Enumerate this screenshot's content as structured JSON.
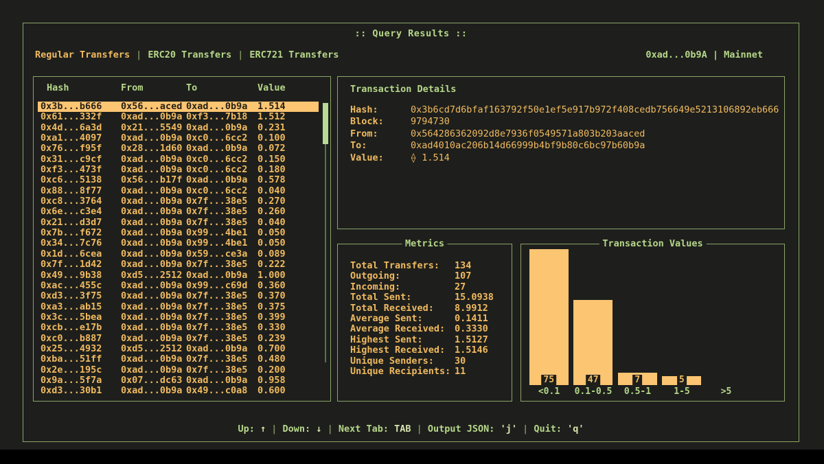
{
  "header": {
    "title": ":: Query Results ::",
    "account_label": "0xad...0b9A | Mainnet"
  },
  "tab_separator": "|",
  "tabs": [
    {
      "label": "Regular Transfers",
      "active": true
    },
    {
      "label": "ERC20 Transfers",
      "active": false
    },
    {
      "label": "ERC721 Transfers",
      "active": false
    }
  ],
  "table": {
    "columns": [
      "Hash",
      "From",
      "To",
      "Value"
    ],
    "selected_index": 0,
    "rows": [
      [
        "0x3b...b666",
        "0x56...aced",
        "0xad...0b9a",
        "1.514"
      ],
      [
        "0x61...332f",
        "0xad...0b9a",
        "0xf3...7b18",
        "1.512"
      ],
      [
        "0x4d...6a3d",
        "0x21...5549",
        "0xad...0b9a",
        "0.231"
      ],
      [
        "0xa1...4097",
        "0xad...0b9a",
        "0xc0...6cc2",
        "0.100"
      ],
      [
        "0x76...f95f",
        "0x28...1d60",
        "0xad...0b9a",
        "0.072"
      ],
      [
        "0x31...c9cf",
        "0xad...0b9a",
        "0xc0...6cc2",
        "0.150"
      ],
      [
        "0xf3...473f",
        "0xad...0b9a",
        "0xc0...6cc2",
        "0.180"
      ],
      [
        "0xc6...5138",
        "0x56...b17f",
        "0xad...0b9a",
        "0.578"
      ],
      [
        "0x88...8f77",
        "0xad...0b9a",
        "0xc0...6cc2",
        "0.040"
      ],
      [
        "0xc8...3764",
        "0xad...0b9a",
        "0x7f...38e5",
        "0.270"
      ],
      [
        "0x6e...c3e4",
        "0xad...0b9a",
        "0x7f...38e5",
        "0.260"
      ],
      [
        "0x21...d3d7",
        "0xad...0b9a",
        "0x7f...38e5",
        "0.040"
      ],
      [
        "0x7b...f672",
        "0xad...0b9a",
        "0x99...4be1",
        "0.050"
      ],
      [
        "0x34...7c76",
        "0xad...0b9a",
        "0x99...4be1",
        "0.050"
      ],
      [
        "0x1d...6cea",
        "0xad...0b9a",
        "0x59...ce3a",
        "0.089"
      ],
      [
        "0x7f...1d42",
        "0xad...0b9a",
        "0x7f...38e5",
        "0.222"
      ],
      [
        "0x49...9b38",
        "0xd5...2512",
        "0xad...0b9a",
        "1.000"
      ],
      [
        "0xac...455c",
        "0xad...0b9a",
        "0x99...c69d",
        "0.360"
      ],
      [
        "0xd3...3f75",
        "0xad...0b9a",
        "0x7f...38e5",
        "0.370"
      ],
      [
        "0xa3...ab15",
        "0xad...0b9a",
        "0x7f...38e5",
        "0.375"
      ],
      [
        "0x3c...5bea",
        "0xad...0b9a",
        "0x7f...38e5",
        "0.399"
      ],
      [
        "0xcb...e17b",
        "0xad...0b9a",
        "0x7f...38e5",
        "0.330"
      ],
      [
        "0xc0...b887",
        "0xad...0b9a",
        "0x7f...38e5",
        "0.239"
      ],
      [
        "0x25...4932",
        "0xd5...2512",
        "0xad...0b9a",
        "0.700"
      ],
      [
        "0xba...51ff",
        "0xad...0b9a",
        "0x7f...38e5",
        "0.480"
      ],
      [
        "0x2e...195c",
        "0xad...0b9a",
        "0x7f...38e5",
        "0.200"
      ],
      [
        "0x9a...5f7a",
        "0x07...dc63",
        "0xad...0b9a",
        "0.958"
      ],
      [
        "0xd3...30b1",
        "0xad...0b9a",
        "0x49...c0a8",
        "0.600"
      ]
    ]
  },
  "details": {
    "title": "Transaction Details",
    "fields": [
      {
        "label": "Hash:",
        "value": "0x3b6cd7d6bfaf163792f50e1ef5e917b972f408cedb756649e5213106892eb666"
      },
      {
        "label": "Block:",
        "value": "9794730"
      },
      {
        "label": "From:",
        "value": "0x564286362092d8e7936f0549571a803b203aaced"
      },
      {
        "label": "To:",
        "value": "0xad4010ac206b14d66999b4bf9b80c6bc97b60b9a"
      },
      {
        "label": "Value:",
        "value": "⟠ 1.514"
      }
    ]
  },
  "metrics": {
    "title": "Metrics",
    "items": [
      {
        "label": "Total Transfers:",
        "value": "134"
      },
      {
        "label": "Outgoing:",
        "value": "107"
      },
      {
        "label": "Incoming:",
        "value": "27"
      },
      {
        "label": "Total Sent:",
        "value": "15.0938"
      },
      {
        "label": "Total Received:",
        "value": "8.9912"
      },
      {
        "label": "Average Sent:",
        "value": "0.1411"
      },
      {
        "label": "Average Received:",
        "value": "0.3330"
      },
      {
        "label": "Highest Sent:",
        "value": "1.5127"
      },
      {
        "label": "Highest Received:",
        "value": "1.5146"
      },
      {
        "label": "Unique Senders:",
        "value": "30"
      },
      {
        "label": "Unique Recipients:",
        "value": "11"
      }
    ]
  },
  "chart_data": {
    "type": "bar",
    "title": "Transaction Values",
    "categories": [
      "<0.1",
      "0.1-0.5",
      "0.5-1",
      "1-5",
      ">5"
    ],
    "values": [
      75,
      47,
      7,
      5,
      0
    ],
    "xlabel": "",
    "ylabel": "",
    "ylim": [
      0,
      75
    ],
    "grid": false,
    "legend": false,
    "value_labels_shown": true,
    "bar_color": "#fcc572"
  },
  "footer": {
    "separator": "|",
    "items": [
      {
        "label": "Up:",
        "key": "↑"
      },
      {
        "label": "Down:",
        "key": "↓"
      },
      {
        "label": "Next Tab:",
        "key": "TAB"
      },
      {
        "label": "Output JSON:",
        "key": "'j'"
      },
      {
        "label": "Quit:",
        "key": "'q'"
      }
    ]
  },
  "colors": {
    "background": "#1e1f1c",
    "border": "#8aa468",
    "text_green": "#b6d78a",
    "text_orange": "#f0ba60",
    "selected_bg": "#fcc572",
    "selected_text": "#262117",
    "scroll_thumb": "#b7da97"
  }
}
